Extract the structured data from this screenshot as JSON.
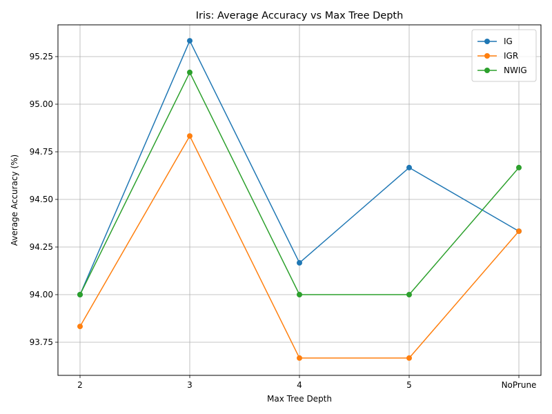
{
  "chart_data": {
    "type": "line",
    "title": "Iris: Average Accuracy vs Max Tree Depth",
    "xlabel": "Max Tree Depth",
    "ylabel": "Average Accuracy (%)",
    "categories": [
      "2",
      "3",
      "4",
      "5",
      "NoPrune"
    ],
    "y_ticks": [
      "93.75",
      "94.00",
      "94.25",
      "94.50",
      "94.75",
      "95.00",
      "95.25"
    ],
    "ylim": [
      93.6,
      95.4
    ],
    "grid": true,
    "legend_position": "top-right",
    "series": [
      {
        "name": "IG",
        "color": "#1f77b4",
        "values": [
          94.0,
          95.333,
          94.167,
          94.667,
          94.333
        ]
      },
      {
        "name": "IGR",
        "color": "#ff7f0e",
        "values": [
          93.833,
          94.833,
          93.667,
          93.667,
          94.333
        ]
      },
      {
        "name": "NWIG",
        "color": "#2ca02c",
        "values": [
          94.0,
          95.167,
          94.0,
          94.0,
          94.667
        ]
      }
    ]
  }
}
